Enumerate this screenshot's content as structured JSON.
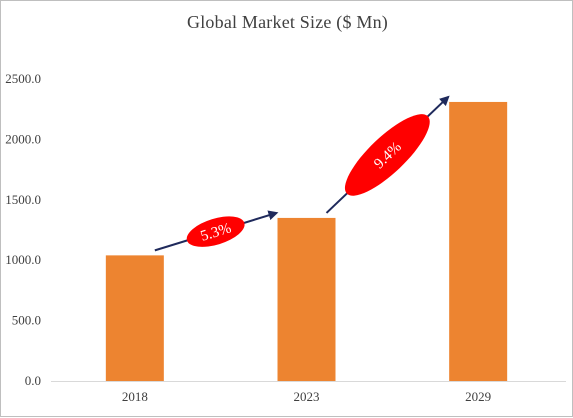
{
  "chart_data": {
    "type": "bar",
    "title": "Global  Market Size ($ Mn)",
    "categories": [
      "2018",
      "2023",
      "2029"
    ],
    "values": [
      1040,
      1350,
      2310
    ],
    "ylim": [
      0,
      2500
    ],
    "yticks": [
      "0.0",
      "500.0",
      "1000.0",
      "1500.0",
      "2000.0",
      "2500.0"
    ],
    "xlabel": "",
    "ylabel": "",
    "grid": false,
    "bar_color": "#ED8430",
    "annotations": [
      {
        "text": "5.3%",
        "from": "2018",
        "to": "2023"
      },
      {
        "text": "9.4%",
        "from": "2023",
        "to": "2029"
      }
    ],
    "annotation_color": "#FF0000",
    "arrow_color": "#1F2A5C"
  }
}
